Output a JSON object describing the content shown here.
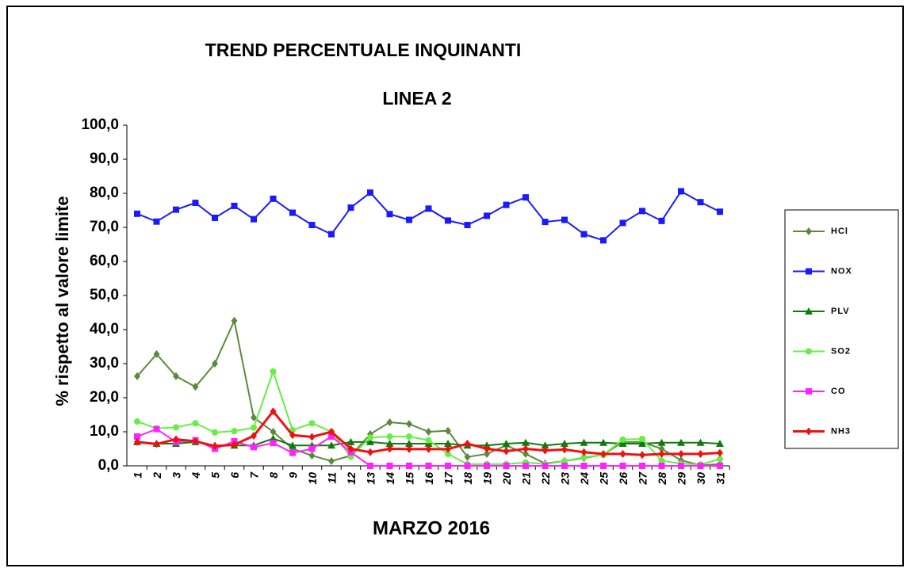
{
  "chart_data": {
    "type": "line",
    "title": "TREND PERCENTUALE INQUINANTI",
    "subtitle": "LINEA 2",
    "x_label": "MARZO 2016",
    "y_label": "% rispetto al valore limite",
    "categories": [
      "1",
      "2",
      "3",
      "4",
      "5",
      "6",
      "7",
      "8",
      "9",
      "10",
      "11",
      "12",
      "13",
      "14",
      "15",
      "16",
      "17",
      "18",
      "19",
      "20",
      "21",
      "22",
      "23",
      "24",
      "25",
      "26",
      "27",
      "28",
      "29",
      "30",
      "31"
    ],
    "ylim": [
      0,
      100
    ],
    "yticks": [
      {
        "value": 0,
        "label": "0,0"
      },
      {
        "value": 10,
        "label": "10,0"
      },
      {
        "value": 20,
        "label": "20,0"
      },
      {
        "value": 30,
        "label": "30,0"
      },
      {
        "value": 40,
        "label": "40,0"
      },
      {
        "value": 50,
        "label": "50,0"
      },
      {
        "value": 60,
        "label": "60,0"
      },
      {
        "value": 70,
        "label": "70,0"
      },
      {
        "value": 80,
        "label": "80,0"
      },
      {
        "value": 90,
        "label": "90,0"
      },
      {
        "value": 100,
        "label": "100,0"
      }
    ],
    "grid": false,
    "legend": "right",
    "series": [
      {
        "name": "HCl",
        "color": "#5b8a3c",
        "marker": "diamond",
        "values": [
          26.3,
          32.8,
          26.3,
          23.2,
          30,
          42.6,
          14.2,
          10,
          5,
          3,
          1.4,
          3,
          9.3,
          12.8,
          12.3,
          10,
          10.3,
          2.6,
          3.5,
          6,
          3.5,
          0.7,
          1.4,
          2.3,
          3.3,
          7,
          7,
          5,
          1.6,
          0.2,
          0.5
        ]
      },
      {
        "name": "NOX",
        "color": "#1a1aff",
        "marker": "square",
        "values": [
          74,
          71.7,
          75.2,
          77.2,
          72.8,
          76.3,
          72.4,
          78.4,
          74.3,
          70.7,
          68,
          75.8,
          80.2,
          73.9,
          72.2,
          75.5,
          72,
          70.7,
          73.4,
          76.6,
          78.8,
          71.6,
          72.2,
          68,
          66.2,
          71.3,
          74.8,
          71.9,
          80.6,
          77.4,
          74.6
        ]
      },
      {
        "name": "PLV",
        "color": "#0f7a0f",
        "marker": "triangle",
        "values": [
          7,
          6.5,
          6.5,
          7,
          6,
          6,
          6,
          8,
          6,
          6,
          6,
          7,
          7,
          6.5,
          6.5,
          6.5,
          6.5,
          6,
          6,
          6.5,
          6.8,
          6,
          6.5,
          6.8,
          6.8,
          6.5,
          6.5,
          6.8,
          6.8,
          6.8,
          6.5
        ]
      },
      {
        "name": "SO2",
        "color": "#66ee44",
        "marker": "circle",
        "values": [
          13,
          11,
          11.3,
          12.5,
          9.8,
          10.2,
          11.2,
          27.7,
          10.5,
          12.5,
          10,
          2.7,
          8.3,
          8.6,
          8.6,
          7.5,
          3.5,
          0.5,
          0.5,
          0.5,
          1,
          0.5,
          1.4,
          2.5,
          3.2,
          7.7,
          7.9,
          1.5,
          0.6,
          0.4,
          2
        ]
      },
      {
        "name": "CO",
        "color": "#ff22ff",
        "marker": "square",
        "values": [
          8.6,
          10.8,
          7,
          7.5,
          5,
          7.2,
          5.5,
          6.7,
          3.8,
          5,
          8.6,
          4,
          0,
          0,
          0,
          0,
          0,
          0,
          0,
          0,
          0,
          0,
          0,
          0,
          0,
          0,
          0,
          0,
          0,
          0,
          0
        ]
      },
      {
        "name": "NH3",
        "color": "#ee1111",
        "marker": "diamond",
        "values": [
          7,
          6.4,
          7.8,
          7.2,
          5.8,
          6.2,
          8.8,
          16,
          9,
          8.5,
          10,
          5,
          4,
          5,
          4.9,
          4.9,
          4.9,
          6.5,
          5,
          4.3,
          5,
          4.5,
          4.8,
          4,
          3.5,
          3.5,
          3.2,
          3.5,
          3.5,
          3.5,
          3.8
        ]
      }
    ]
  }
}
